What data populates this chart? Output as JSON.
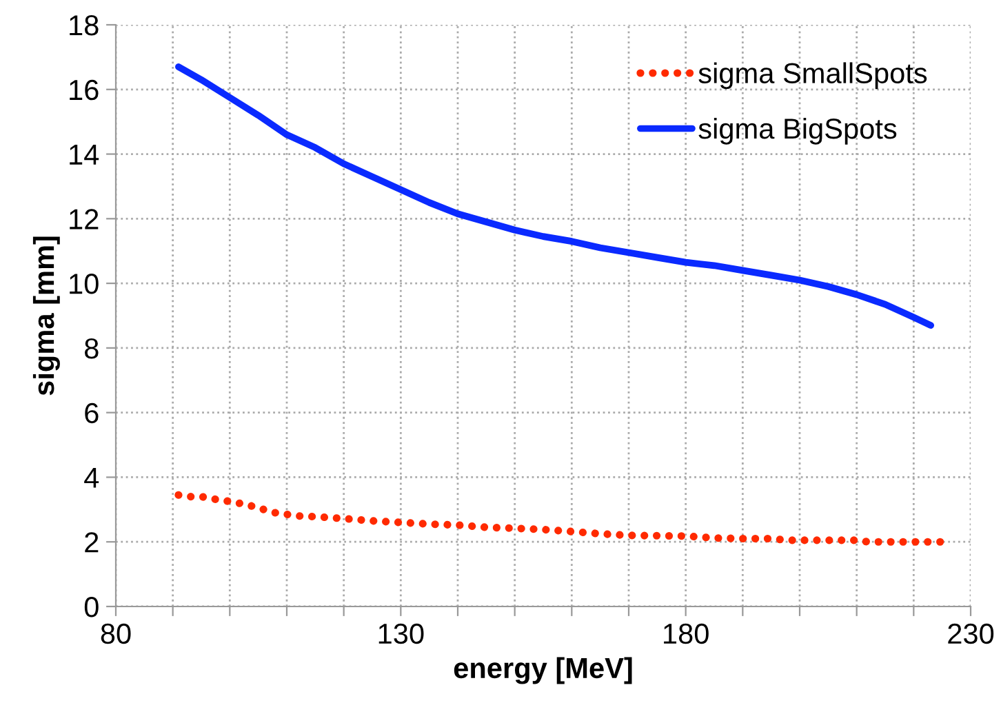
{
  "chart_data": {
    "type": "line",
    "xlabel": "energy [MeV]",
    "ylabel": "sigma [mm]",
    "xlim": [
      80,
      230
    ],
    "ylim": [
      0,
      18
    ],
    "xticks": [
      80,
      {
        "value": 90,
        "label": null
      },
      {
        "value": 100,
        "label": null
      },
      {
        "value": 110,
        "label": null
      },
      {
        "value": 120,
        "label": null
      },
      130,
      {
        "value": 140,
        "label": null
      },
      {
        "value": 150,
        "label": null
      },
      {
        "value": 160,
        "label": null
      },
      {
        "value": 170,
        "label": null
      },
      180,
      {
        "value": 190,
        "label": null
      },
      {
        "value": 200,
        "label": null
      },
      {
        "value": 210,
        "label": null
      },
      {
        "value": 220,
        "label": null
      },
      230
    ],
    "yticks": [
      0,
      2,
      4,
      6,
      8,
      10,
      12,
      14,
      16,
      18
    ],
    "grid": true,
    "legend": "top right",
    "series": [
      {
        "name": "sigma SmallSpots",
        "color": "#ff2a00",
        "line_style": "dotted",
        "x": [
          91,
          93,
          95,
          98,
          100,
          103,
          106,
          108,
          112,
          115,
          120,
          125,
          130,
          135,
          140,
          145,
          150,
          155,
          160,
          165,
          170,
          180,
          185,
          190,
          195,
          198,
          205,
          210,
          212,
          226
        ],
        "values": [
          3.45,
          3.4,
          3.4,
          3.3,
          3.25,
          3.15,
          3.0,
          2.9,
          2.8,
          2.78,
          2.72,
          2.65,
          2.6,
          2.55,
          2.52,
          2.45,
          2.42,
          2.38,
          2.32,
          2.25,
          2.2,
          2.18,
          2.12,
          2.1,
          2.1,
          2.05,
          2.05,
          2.05,
          2.0,
          2.0
        ]
      },
      {
        "name": "sigma BigSpots",
        "color": "#0a2aff",
        "line_style": "solid",
        "x": [
          91,
          95,
          100,
          105,
          110,
          115,
          120,
          125,
          130,
          135,
          140,
          145,
          150,
          155,
          160,
          165,
          170,
          175,
          180,
          185,
          190,
          195,
          200,
          205,
          210,
          215,
          220,
          223
        ],
        "values": [
          16.7,
          16.3,
          15.75,
          15.2,
          14.6,
          14.2,
          13.7,
          13.3,
          12.9,
          12.5,
          12.15,
          11.9,
          11.65,
          11.45,
          11.3,
          11.1,
          10.95,
          10.8,
          10.65,
          10.55,
          10.4,
          10.25,
          10.1,
          9.9,
          9.65,
          9.35,
          8.95,
          8.7
        ]
      }
    ]
  }
}
